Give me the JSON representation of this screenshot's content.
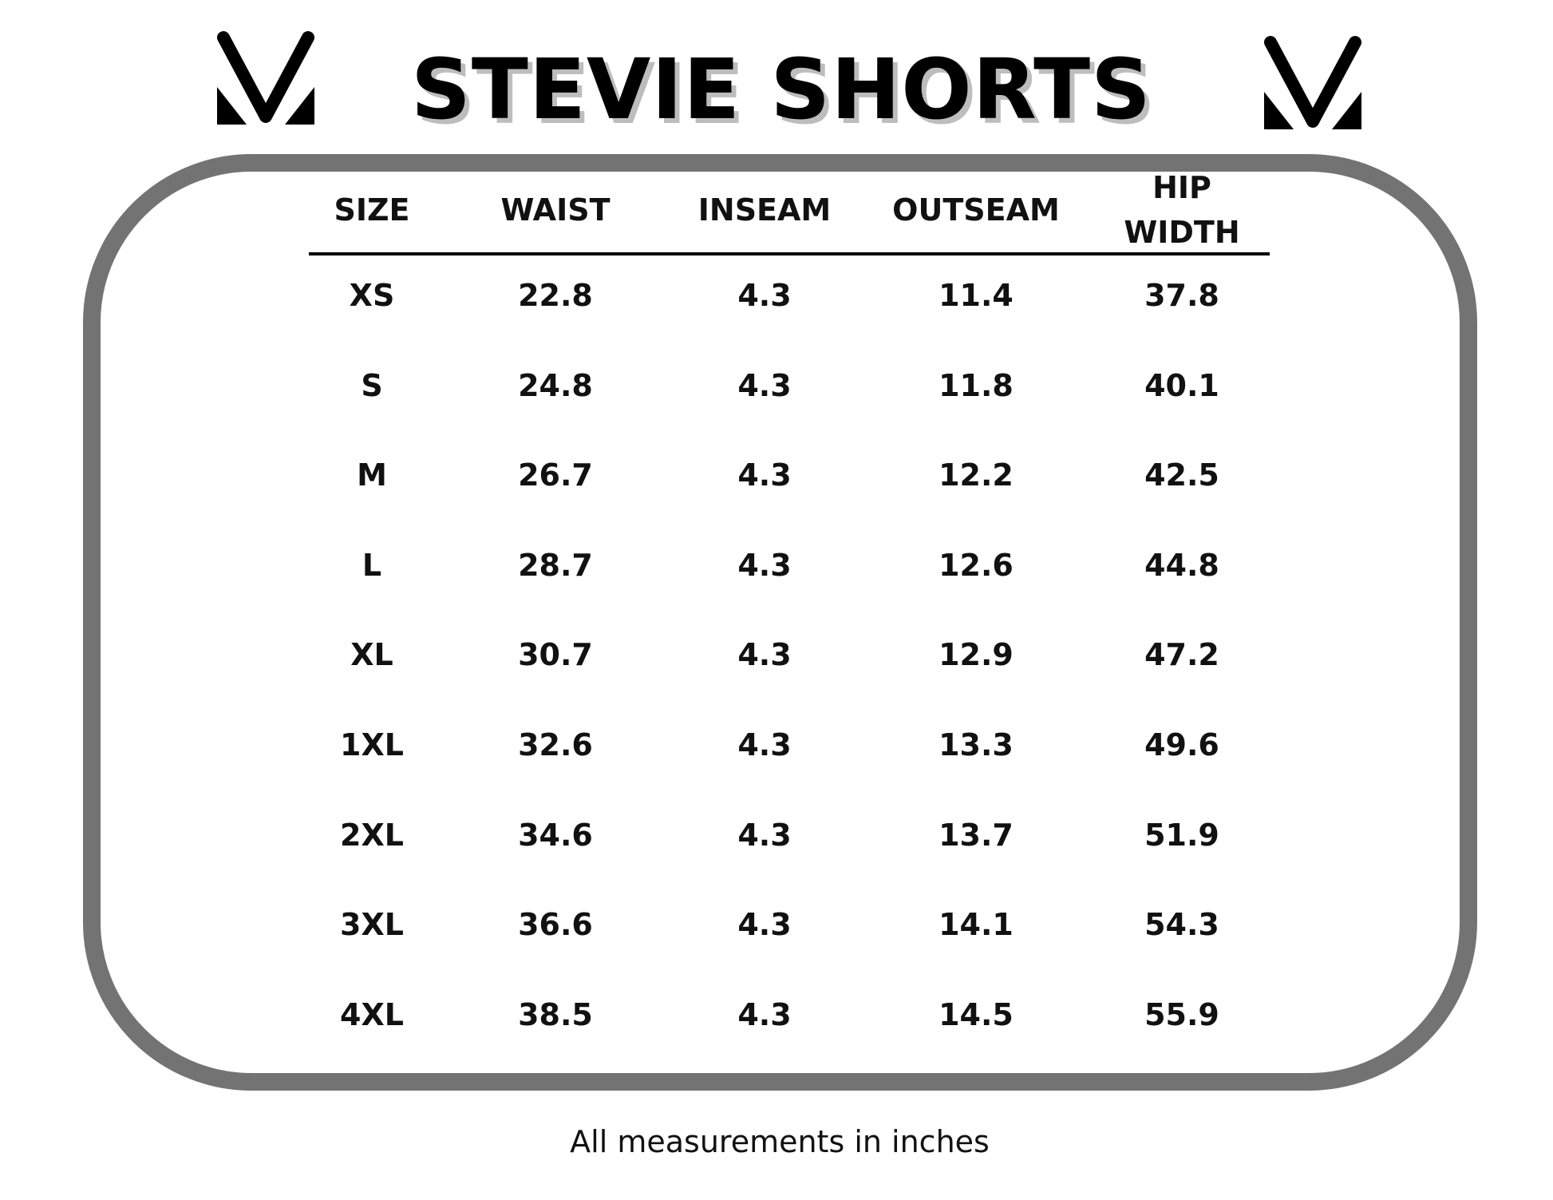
{
  "header": {
    "title": "STEVIE SHORTS"
  },
  "table": {
    "columns": [
      "SIZE",
      "WAIST",
      "INSEAM",
      "OUTSEAM",
      "HIP WIDTH"
    ],
    "rows": [
      [
        "XS",
        "22.8",
        "4.3",
        "11.4",
        "37.8"
      ],
      [
        "S",
        "24.8",
        "4.3",
        "11.8",
        "40.1"
      ],
      [
        "M",
        "26.7",
        "4.3",
        "12.2",
        "42.5"
      ],
      [
        "L",
        "28.7",
        "4.3",
        "12.6",
        "44.8"
      ],
      [
        "XL",
        "30.7",
        "4.3",
        "12.9",
        "47.2"
      ],
      [
        "1XL",
        "32.6",
        "4.3",
        "13.3",
        "49.6"
      ],
      [
        "2XL",
        "34.6",
        "4.3",
        "13.7",
        "51.9"
      ],
      [
        "3XL",
        "36.6",
        "4.3",
        "14.1",
        "54.3"
      ],
      [
        "4XL",
        "38.5",
        "4.3",
        "14.5",
        "55.9"
      ]
    ]
  },
  "footer": {
    "note": "All measurements in inches"
  }
}
